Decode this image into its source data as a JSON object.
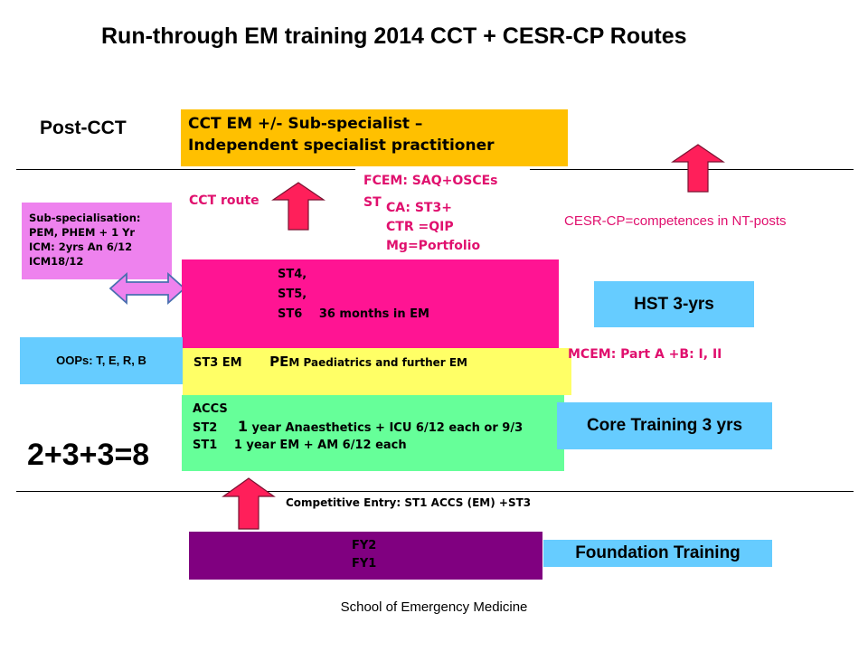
{
  "title": "Run-through EM training 2014 CCT + CESR-CP Routes",
  "post_cct_label": "Post-CCT",
  "cct_box": {
    "line1": "CCT EM +/- Sub-specialist –",
    "line2": "Independent specialist practitioner"
  },
  "cct_route_label": "CCT route",
  "fcem": {
    "heading": "FCEM: SAQ+OSCEs",
    "partial": "ST",
    "items": [
      "CA: ST3+",
      "CTR =QIP",
      "Mg=Portfolio"
    ]
  },
  "cesr_label": "CESR-CP=competences in NT-posts",
  "sub_specialisation": {
    "lines": [
      "Sub-specialisation:",
      "PEM,  PHEM  + 1 Yr",
      "ICM: 2yrs An 6/12",
      "ICM18/12"
    ]
  },
  "st456": {
    "lines": [
      "ST4,",
      "ST5,",
      "ST6"
    ],
    "note": "36 months in EM"
  },
  "st3": {
    "label": "ST3 EM",
    "pe_prefix": "PE",
    "pe_rest": "M Paediatrics and further EM"
  },
  "accs": {
    "heading": "ACCS",
    "st2_label": "ST2",
    "st2_year": "1",
    "st2_text": "year  Anaesthetics + ICU  6/12 each or 9/3",
    "st1_label": "ST1",
    "st1_text": "1 year  EM +    AM 6/12 each"
  },
  "hst_label": "HST 3-yrs",
  "mcem_label": "MCEM: Part A +B: I, II",
  "core_label": "Core Training 3 yrs",
  "oops_label": "OOPs: T, E, R, B",
  "formula": "2+3+3=8",
  "entry_label": "Competitive Entry: ST1 ACCS (EM) +ST3",
  "fy": {
    "lines": [
      "FY2",
      "FY1"
    ]
  },
  "foundation_label": "Foundation Training",
  "footer": "School of Emergency Medicine",
  "colors": {
    "cct_box": "#ffc000",
    "pink_text": "#e0106e",
    "sub_spec_box": "#ee82ee",
    "st456_box": "#ff1493",
    "st3_box": "#ffff66",
    "accs_box": "#66ff99",
    "blue_box": "#66ccff",
    "fy_box": "#800080",
    "arrow_fill": "#ff1f5a"
  }
}
